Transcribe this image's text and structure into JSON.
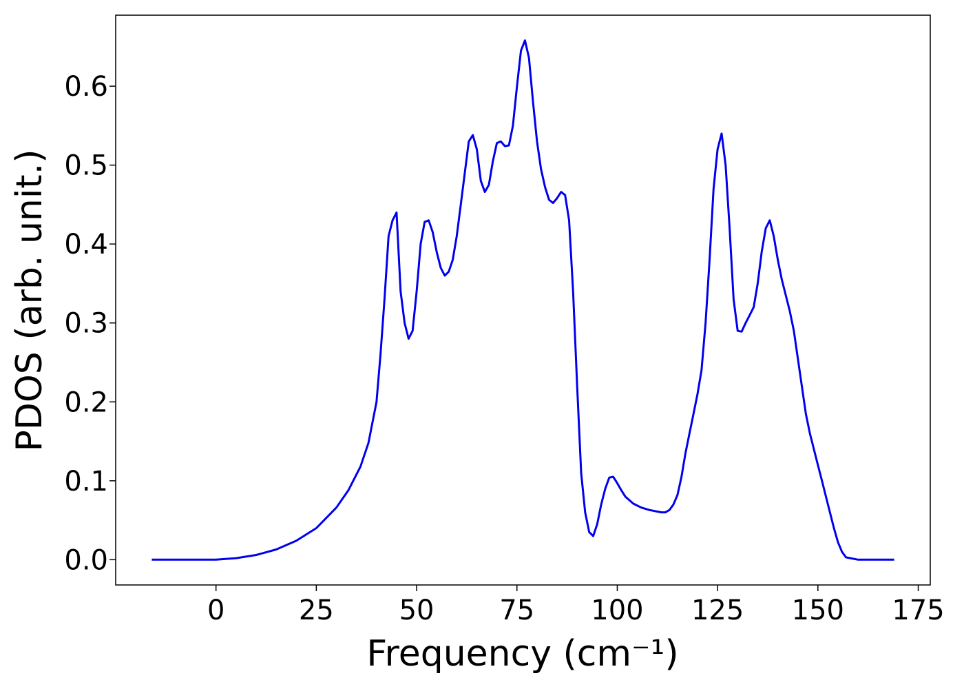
{
  "chart_data": {
    "type": "line",
    "title": "",
    "xlabel": "Frequency (cm⁻¹)",
    "ylabel": "PDOS (arb. unit.)",
    "xlim": [
      -25,
      178
    ],
    "ylim": [
      -0.032,
      0.69
    ],
    "xticks": [
      0,
      25,
      50,
      75,
      100,
      125,
      150,
      175
    ],
    "yticks": [
      0.0,
      0.1,
      0.2,
      0.3,
      0.4,
      0.5,
      0.6
    ],
    "ytick_labels": [
      "0.0",
      "0.1",
      "0.2",
      "0.3",
      "0.4",
      "0.5",
      "0.6"
    ],
    "grid": false,
    "legend": "none",
    "series": [
      {
        "color": "#0000ee",
        "x": [
          -16,
          -10,
          -5,
          0,
          5,
          10,
          15,
          20,
          25,
          30,
          33,
          36,
          38,
          40,
          41,
          42,
          43,
          44,
          45,
          46,
          47,
          48,
          49,
          50,
          51,
          52,
          53,
          54,
          55,
          56,
          57,
          58,
          59,
          60,
          61,
          62,
          63,
          64,
          65,
          66,
          67,
          68,
          69,
          70,
          71,
          72,
          73,
          74,
          75,
          76,
          77,
          78,
          79,
          80,
          81,
          82,
          83,
          84,
          85,
          86,
          87,
          88,
          89,
          90,
          91,
          92,
          93,
          94,
          95,
          96,
          97,
          98,
          99,
          100,
          101,
          102,
          104,
          106,
          108,
          110,
          111,
          112,
          113,
          114,
          115,
          116,
          117,
          118,
          119,
          120,
          121,
          122,
          123,
          124,
          125,
          126,
          127,
          128,
          129,
          130,
          131,
          132,
          133,
          134,
          135,
          136,
          137,
          138,
          139,
          140,
          141,
          142,
          143,
          144,
          145,
          146,
          147,
          148,
          149,
          150,
          151,
          152,
          153,
          154,
          155,
          156,
          157,
          160,
          165,
          169
        ],
        "y": [
          0.0,
          0.0,
          0.0,
          0.0,
          0.002,
          0.006,
          0.013,
          0.024,
          0.04,
          0.066,
          0.088,
          0.118,
          0.148,
          0.2,
          0.26,
          0.33,
          0.41,
          0.43,
          0.44,
          0.34,
          0.3,
          0.28,
          0.29,
          0.34,
          0.4,
          0.428,
          0.43,
          0.415,
          0.39,
          0.37,
          0.36,
          0.365,
          0.38,
          0.41,
          0.45,
          0.49,
          0.53,
          0.538,
          0.52,
          0.48,
          0.466,
          0.475,
          0.505,
          0.528,
          0.53,
          0.524,
          0.525,
          0.55,
          0.6,
          0.645,
          0.658,
          0.636,
          0.58,
          0.53,
          0.495,
          0.472,
          0.456,
          0.452,
          0.458,
          0.466,
          0.462,
          0.43,
          0.34,
          0.22,
          0.11,
          0.06,
          0.035,
          0.03,
          0.045,
          0.07,
          0.09,
          0.104,
          0.105,
          0.097,
          0.088,
          0.08,
          0.071,
          0.066,
          0.063,
          0.061,
          0.06,
          0.06,
          0.063,
          0.07,
          0.082,
          0.105,
          0.135,
          0.16,
          0.185,
          0.21,
          0.24,
          0.3,
          0.38,
          0.47,
          0.52,
          0.54,
          0.5,
          0.42,
          0.33,
          0.29,
          0.289,
          0.3,
          0.31,
          0.32,
          0.35,
          0.39,
          0.42,
          0.43,
          0.41,
          0.38,
          0.355,
          0.335,
          0.315,
          0.29,
          0.255,
          0.22,
          0.185,
          0.16,
          0.14,
          0.12,
          0.1,
          0.08,
          0.06,
          0.04,
          0.022,
          0.01,
          0.003,
          0.0,
          0.0,
          0.0
        ]
      }
    ]
  }
}
